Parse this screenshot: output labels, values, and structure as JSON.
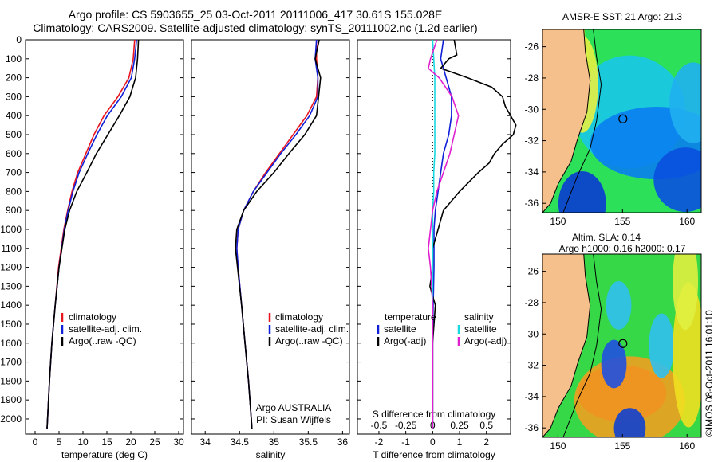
{
  "header": {
    "line1": "Argo profile: CS 5903655_25 03-Oct-2011 20111006_417 30.61S 155.028E",
    "line2": "Climatology: CARS2009. Satellite-adjusted climatology: synTS_20111002.nc (1.2d earlier)"
  },
  "stamp": "©IMOS 08-Oct-2011 16:01:10",
  "colors": {
    "climatology": "#e8141e",
    "satellite": "#1020d8",
    "argo": "#000000",
    "sal_satellite": "#18d8e0",
    "sal_argo": "#e020d0",
    "land": "#f5c08c"
  },
  "chart_data": [
    {
      "type": "line",
      "xlabel": "temperature (deg C)",
      "xlim": [
        -2,
        31
      ],
      "xticks": [
        0,
        5,
        10,
        15,
        20,
        25,
        30
      ],
      "ylim": [
        0,
        2080
      ],
      "yticks": [
        0,
        100,
        200,
        300,
        400,
        500,
        600,
        700,
        800,
        900,
        1000,
        1100,
        1200,
        1300,
        1400,
        1500,
        1600,
        1700,
        1800,
        1900,
        2000
      ],
      "legend": [
        "climatology",
        "satellite-adj. clim.",
        "Argo(..raw -QC)"
      ],
      "series": [
        {
          "name": "climatology",
          "depth": [
            0,
            100,
            200,
            300,
            400,
            500,
            600,
            700,
            800,
            900,
            1000,
            1200,
            1400,
            1600,
            1800,
            2050
          ],
          "values": [
            20.8,
            20.5,
            19.6,
            17.3,
            14.4,
            12.3,
            10.6,
            8.9,
            7.7,
            6.8,
            6.0,
            4.9,
            4.2,
            3.5,
            3.0,
            2.5
          ]
        },
        {
          "name": "satellite-adj. clim.",
          "depth": [
            0,
            100,
            200,
            300,
            400,
            500,
            600,
            700,
            800,
            900,
            1000,
            1200,
            1400,
            1600,
            1800,
            2050
          ],
          "values": [
            21.2,
            20.8,
            20.1,
            18.0,
            15.1,
            12.9,
            11.0,
            9.2,
            7.9,
            6.9,
            6.1,
            5.0,
            4.2,
            3.5,
            3.0,
            2.5
          ]
        },
        {
          "name": "Argo(..raw -QC)",
          "depth": [
            0,
            100,
            200,
            300,
            400,
            500,
            600,
            700,
            800,
            900,
            1000,
            1200,
            1400,
            1600,
            1800,
            2050
          ],
          "values": [
            21.6,
            21.4,
            21.0,
            19.8,
            17.6,
            15.2,
            12.8,
            10.8,
            8.7,
            7.2,
            6.2,
            5.0,
            4.2,
            3.5,
            3.0,
            2.5
          ]
        }
      ]
    },
    {
      "type": "line",
      "xlabel": "salinity",
      "xlim": [
        33.8,
        36.1
      ],
      "xticks": [
        34,
        34.5,
        35,
        35.5,
        36
      ],
      "ylim": [
        0,
        2080
      ],
      "legend": [
        "climatology",
        "satellite-adj. clim.",
        "Argo(..raw -QC)"
      ],
      "annotation": [
        "Argo AUSTRALIA",
        "PI: Susan Wijffels"
      ],
      "series": [
        {
          "name": "climatology",
          "depth": [
            0,
            100,
            200,
            300,
            400,
            500,
            600,
            700,
            800,
            900,
            1000,
            1100,
            1200,
            1400,
            1600,
            1800,
            2050
          ],
          "values": [
            35.62,
            35.62,
            35.64,
            35.62,
            35.48,
            35.28,
            35.08,
            34.88,
            34.7,
            34.56,
            34.48,
            34.46,
            34.48,
            34.53,
            34.58,
            34.63,
            34.68
          ]
        },
        {
          "name": "satellite-adj. clim.",
          "depth": [
            0,
            100,
            200,
            300,
            400,
            500,
            600,
            700,
            800,
            900,
            1000,
            1100,
            1200,
            1400,
            1600,
            1800,
            2050
          ],
          "values": [
            35.62,
            35.6,
            35.64,
            35.64,
            35.52,
            35.32,
            35.1,
            34.9,
            34.7,
            34.56,
            34.48,
            34.46,
            34.48,
            34.53,
            34.58,
            34.63,
            34.68
          ]
        },
        {
          "name": "Argo(..raw -QC)",
          "depth": [
            0,
            100,
            200,
            300,
            400,
            500,
            600,
            700,
            800,
            900,
            1000,
            1100,
            1200,
            1400,
            1600,
            1800,
            2050
          ],
          "values": [
            35.66,
            35.6,
            35.68,
            35.65,
            35.62,
            35.45,
            35.22,
            35.0,
            34.75,
            34.56,
            34.46,
            34.44,
            34.47,
            34.53,
            34.58,
            34.63,
            34.68
          ]
        }
      ]
    },
    {
      "type": "line",
      "xlabel": "T difference from climatology",
      "xlabel_top": "S difference from climatology",
      "xlim": [
        -2.8,
        2.9
      ],
      "xticks": [
        -2,
        -1,
        0,
        1,
        2
      ],
      "sxticks": [
        -0.5,
        -0.25,
        0,
        0.25,
        0.5
      ],
      "xtick_labels_s": [
        "-0.5",
        "-0.25",
        "0",
        "0.25",
        "0.5"
      ],
      "ylim": [
        0,
        2080
      ],
      "legend_left_title": "temperature",
      "legend_right_title": "salinity",
      "legend_left": [
        "satellite",
        "Argo(-adj)"
      ],
      "legend_right": [
        "satellite",
        "Argo(-adj)"
      ],
      "series": [
        {
          "name": "T satellite",
          "depth": [
            0,
            100,
            200,
            300,
            400,
            500,
            600,
            700,
            800,
            900,
            1000,
            1200,
            1400,
            1600,
            1800,
            2050
          ],
          "values": [
            0.4,
            0.3,
            0.5,
            0.7,
            0.7,
            0.6,
            0.4,
            0.3,
            0.2,
            0.1,
            0.05,
            0.05,
            0.02,
            0,
            0,
            0
          ]
        },
        {
          "name": "T Argo(-adj)",
          "depth": [
            0,
            80,
            100,
            150,
            200,
            250,
            300,
            350,
            400,
            450,
            500,
            550,
            600,
            650,
            700,
            800,
            900,
            1000,
            1100,
            1200,
            1300,
            1400,
            1600,
            1800,
            2050
          ],
          "values": [
            0.8,
            0.9,
            0.6,
            0.3,
            1.3,
            2.2,
            2.6,
            2.7,
            2.9,
            3.1,
            3.0,
            2.6,
            2.3,
            2.1,
            1.7,
            1.0,
            0.4,
            0.2,
            0.0,
            0.0,
            -0.1,
            0.1,
            0.0,
            0.0,
            0.0
          ]
        },
        {
          "name": "S satellite",
          "depth": [
            0,
            100,
            200,
            300,
            400,
            500,
            600,
            700,
            800,
            900,
            1000,
            1200,
            1400,
            1600,
            1800,
            2050
          ],
          "values": [
            0.0,
            0.01,
            0.02,
            0.02,
            0.02,
            0.02,
            0.02,
            0.01,
            0.01,
            0.0,
            0.0,
            0.0,
            0.0,
            0.0,
            0.0,
            0.0
          ]
        },
        {
          "name": "S Argo(-adj)",
          "depth": [
            0,
            100,
            150,
            200,
            300,
            400,
            500,
            600,
            700,
            800,
            900,
            1000,
            1100,
            1200,
            1400,
            1600,
            1800,
            2050
          ],
          "values": [
            0.04,
            -0.02,
            -0.04,
            0.06,
            0.18,
            0.24,
            0.2,
            0.16,
            0.1,
            0.04,
            0.0,
            -0.02,
            -0.04,
            -0.02,
            0.0,
            0.0,
            0.0,
            0.0
          ]
        }
      ]
    }
  ],
  "maps": {
    "top": {
      "title": "AMSR-E SST: 21  Argo: 21.3",
      "xticks": [
        "150",
        "155",
        "160"
      ],
      "yticks": [
        "-26",
        "-28",
        "-30",
        "-32",
        "-34",
        "-36"
      ]
    },
    "bottom": {
      "title1": "Altim. SLA: 0.14",
      "title2": "Argo h1000: 0.16  h2000: 0.17",
      "xticks": [
        "150",
        "155",
        "160"
      ],
      "yticks": [
        "-26",
        "-28",
        "-30",
        "-32",
        "-34",
        "-36"
      ]
    }
  }
}
